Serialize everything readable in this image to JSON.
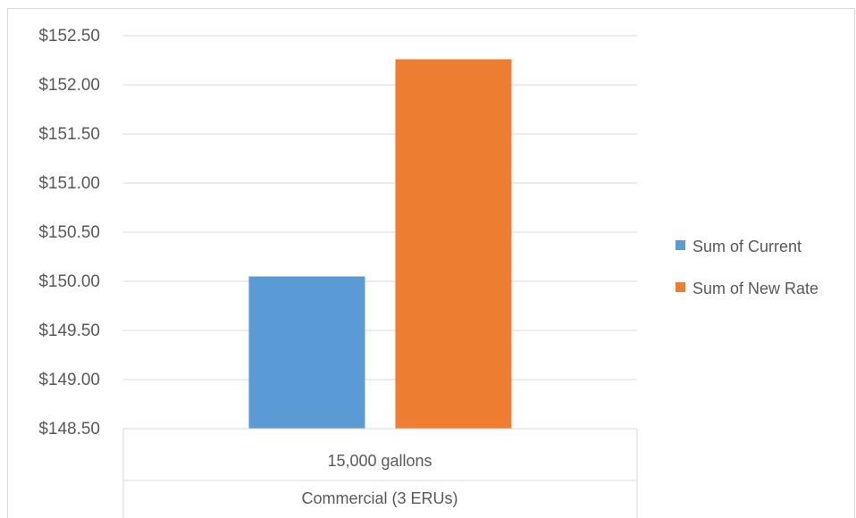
{
  "chart_data": {
    "type": "bar",
    "categories": [
      "15,000 gallons"
    ],
    "category_group": "Commercial (3 ERUs)",
    "series": [
      {
        "name": "Sum of Current",
        "values": [
          150.05
        ],
        "color": "#5b9bd5"
      },
      {
        "name": "Sum of New Rate",
        "values": [
          152.26
        ],
        "color": "#ed7d31"
      }
    ],
    "title": "",
    "xlabel": "",
    "ylabel": "",
    "ylim": [
      148.5,
      152.5
    ],
    "yticks": [
      "$148.50",
      "$149.00",
      "$149.50",
      "$150.00",
      "$150.50",
      "$151.00",
      "$151.50",
      "$152.00",
      "$152.50"
    ],
    "grid": true,
    "legend_position": "right"
  }
}
